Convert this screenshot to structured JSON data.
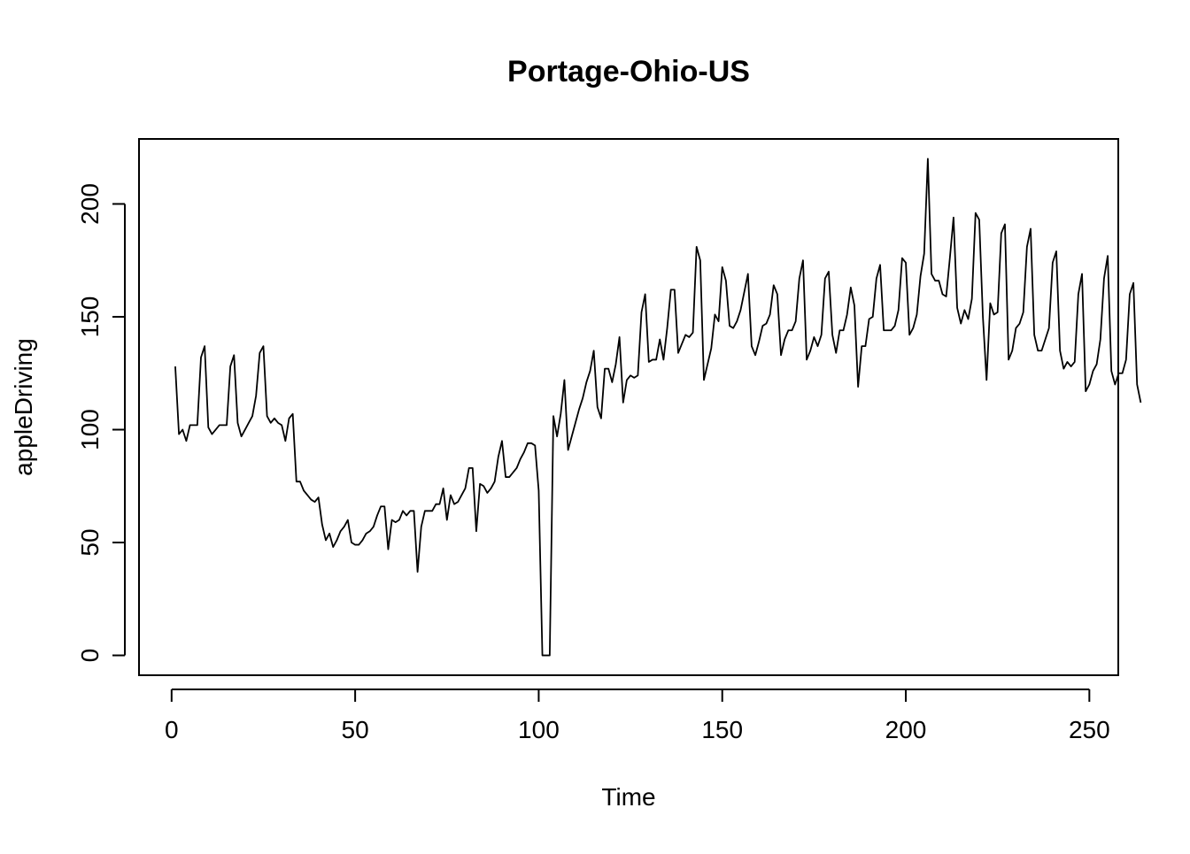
{
  "chart_data": {
    "type": "line",
    "title": "Portage-Ohio-US",
    "xlabel": "Time",
    "ylabel": "appleDriving",
    "xlim": [
      -8.88,
      257.88
    ],
    "ylim": [
      -8.8,
      228.8
    ],
    "x_ticks": [
      0,
      50,
      100,
      150,
      200,
      250
    ],
    "y_ticks": [
      0,
      50,
      100,
      150,
      200
    ],
    "grid": false,
    "legend": "none",
    "line_color": "#000000",
    "series": [
      {
        "x_start": 1,
        "values": [
          128,
          98,
          100,
          95,
          102,
          102,
          102,
          132,
          137,
          101,
          98,
          100,
          102,
          102,
          102,
          128,
          133,
          103,
          97,
          100,
          103,
          106,
          115,
          134,
          137,
          106,
          103,
          105,
          103,
          102,
          95,
          105,
          107,
          77,
          77,
          73,
          71,
          69,
          68,
          70,
          58,
          51,
          54,
          48,
          51,
          55,
          57,
          60,
          50,
          49,
          49,
          51,
          54,
          55,
          57,
          62,
          66,
          66,
          47,
          60,
          59,
          60,
          64,
          62,
          64,
          64,
          37,
          57,
          64,
          64,
          64,
          67,
          67,
          74,
          60,
          71,
          67,
          68,
          71,
          74,
          83,
          83,
          55,
          76,
          75,
          72,
          74,
          77,
          88,
          95,
          79,
          79,
          81,
          83,
          87,
          90,
          94,
          94,
          93,
          73,
          0,
          0,
          0,
          106,
          97,
          107,
          122,
          91,
          97,
          103,
          109,
          114,
          121,
          126,
          135,
          110,
          105,
          127,
          127,
          121,
          129,
          141,
          112,
          122,
          124,
          123,
          124,
          152,
          160,
          130,
          131,
          131,
          140,
          131,
          145,
          162,
          162,
          134,
          138,
          142,
          141,
          143,
          181,
          175,
          122,
          129,
          136,
          151,
          148,
          172,
          166,
          146,
          145,
          148,
          153,
          161,
          169,
          137,
          133,
          139,
          146,
          147,
          151,
          164,
          160,
          133,
          140,
          144,
          144,
          148,
          167,
          175,
          131,
          135,
          141,
          137,
          142,
          167,
          170,
          142,
          134,
          144,
          144,
          151,
          163,
          155,
          119,
          137,
          137,
          149,
          150,
          167,
          173,
          144,
          144,
          144,
          146,
          153,
          176,
          174,
          142,
          145,
          151,
          168,
          178,
          220,
          169,
          166,
          166,
          160,
          159,
          176,
          194,
          154,
          147,
          153,
          149,
          158,
          196,
          193,
          150,
          122,
          156,
          151,
          152,
          187,
          191,
          131,
          135,
          145,
          147,
          152,
          181,
          189,
          142,
          135,
          135,
          140,
          145,
          174,
          179,
          135,
          127,
          130,
          128,
          130,
          160,
          169,
          117,
          120,
          126,
          129,
          140,
          167,
          177,
          126,
          120,
          125,
          125,
          131,
          160,
          165,
          120,
          112
        ]
      }
    ]
  }
}
